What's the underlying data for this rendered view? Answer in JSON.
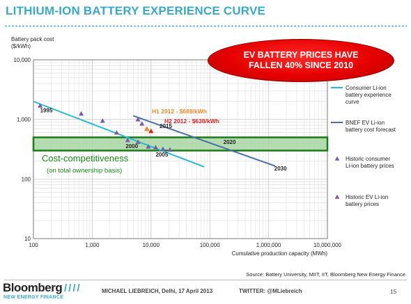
{
  "title": "LITHIUM-ION BATTERY EXPERIENCE CURVE",
  "banner": "EV BATTERY PRICES HAVE FALLEN 40% SINCE 2010",
  "colors": {
    "accent": "#3aa8c9",
    "consumer_line": "#29b8d6",
    "bnef_line": "#4a6fa5",
    "band_fill": "#a8d5a2",
    "band_border": "#1a7a1a",
    "marker": "#7b5ea7",
    "h1_color": "#f08a24",
    "h2_color": "#e02020",
    "banner_red": "#e60000"
  },
  "chart_data": {
    "type": "scatter",
    "xscale": "log",
    "yscale": "log",
    "xlabel": "Cumulative production capacity (MWh)",
    "ylabel_lines": [
      "Battery pack cost",
      "($/kWh)"
    ],
    "xlim": [
      100,
      10000000
    ],
    "ylim": [
      10,
      10000
    ],
    "x_ticks": [
      {
        "v": 100,
        "label": "100"
      },
      {
        "v": 1000,
        "label": "1,000"
      },
      {
        "v": 10000,
        "label": "10,000"
      },
      {
        "v": 100000,
        "label": "100,000"
      },
      {
        "v": 1000000,
        "label": "1,000,000"
      },
      {
        "v": 10000000,
        "label": "10,000,000"
      }
    ],
    "y_ticks": [
      {
        "v": 10,
        "label": "10"
      },
      {
        "v": 100,
        "label": "100"
      },
      {
        "v": 1000,
        "label": "1,000"
      },
      {
        "v": 10000,
        "label": "10,000"
      }
    ],
    "band": {
      "low": 300,
      "high": 500
    },
    "band_label": "Cost-competitiveness",
    "band_sublabel": "(on total ownership basis)",
    "series": [
      {
        "name": "Consumer Li-ion battery experience curve",
        "kind": "line",
        "points": [
          [
            100,
            2000
          ],
          [
            80000,
            160
          ]
        ]
      },
      {
        "name": "BNEF EV Li-ion battery cost forecast",
        "kind": "line",
        "points": [
          [
            5000,
            1150
          ],
          [
            1300000,
            165
          ]
        ]
      },
      {
        "name": "Historic consumer Li-ion battery prices",
        "kind": "marker",
        "points": [
          [
            130,
            1700
          ],
          [
            650,
            1250
          ],
          [
            1500,
            950
          ],
          [
            2600,
            600
          ],
          [
            4000,
            450
          ],
          [
            6000,
            420
          ],
          [
            9000,
            350
          ],
          [
            12000,
            340
          ],
          [
            16000,
            320
          ],
          [
            21000,
            310
          ]
        ]
      },
      {
        "name": "Historic EV Li-ion battery prices",
        "kind": "marker",
        "points": [
          [
            6000,
            1000
          ],
          [
            7000,
            850
          ],
          [
            8500,
            700
          ]
        ]
      }
    ],
    "h_points": [
      {
        "label": "H1 2012 - $689/kWh",
        "x": 8500,
        "y": 689
      },
      {
        "label": "H2 2012 - $638/kWh",
        "x": 10000,
        "y": 638
      }
    ],
    "annotations": [
      {
        "text": "1995",
        "x": 130,
        "y": 1320
      },
      {
        "text": "2000",
        "x": 3700,
        "y": 330
      },
      {
        "text": "2005",
        "x": 12000,
        "y": 240
      },
      {
        "text": "2015",
        "x": 14000,
        "y": 720
      },
      {
        "text": "2020",
        "x": 170000,
        "y": 385
      },
      {
        "text": "2030",
        "x": 1250000,
        "y": 140
      }
    ]
  },
  "source": "Source: Battery University, MIIT, IIT, Bloomberg New Energy Finance",
  "footer": {
    "logo": "Bloomberg",
    "logo_sub": "NEW ENERGY FINANCE",
    "slashes": "////",
    "author": "MICHAEL LIEBREICH, Delhi, 17 April 2013",
    "twitter": "TWITTER: @MLiebreich",
    "page": "15"
  }
}
